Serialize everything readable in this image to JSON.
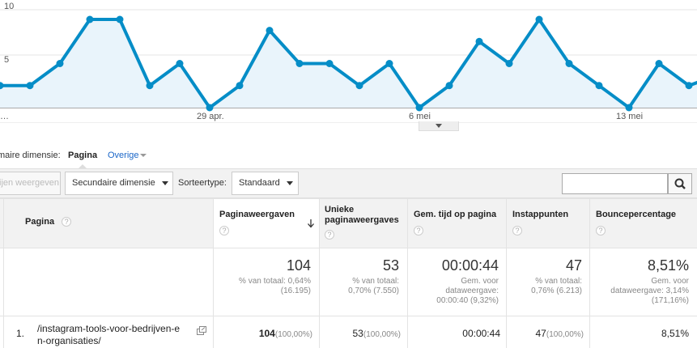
{
  "chart_data": {
    "type": "area",
    "ylim": [
      0,
      10
    ],
    "y_ticks": [
      "10",
      "5"
    ],
    "x_tick_labels": [
      "…",
      "29 apr.",
      "6 mei",
      "13 mei"
    ],
    "values": [
      2,
      2,
      4,
      8,
      8,
      2,
      4,
      0,
      2,
      7,
      4,
      4,
      2,
      4,
      0,
      2,
      6,
      4,
      8,
      4,
      2,
      0,
      4,
      2,
      3
    ],
    "line_color": "#058dc7",
    "fill_color": "#e9f4fb"
  },
  "dimension_bar": {
    "label": "maire dimensie:",
    "active": "Pagina",
    "other": "Overige"
  },
  "toolbar": {
    "plot_rows": "ijen weergeven",
    "secondary_dimension": "Secundaire dimensie",
    "sort_type_label": "Sorteertype:",
    "sort_type_value": "Standaard",
    "search_value": ""
  },
  "table": {
    "headers": {
      "page": "Pagina",
      "pageviews": "Paginaweergaven",
      "unique_line1": "Unieke",
      "unique_line2": "paginaweergaves",
      "avg_time": "Gem. tijd op pagina",
      "entrances": "Instappunten",
      "bounce": "Bouncepercentage",
      "help": "?"
    },
    "totals": {
      "pageviews": "104",
      "pageviews_sub1": "% van totaal: 0,64%",
      "pageviews_sub2": "(16.195)",
      "unique": "53",
      "unique_sub1": "% van totaal:",
      "unique_sub2": "0,70% (7.550)",
      "avg_time": "00:00:44",
      "avg_time_sub1": "Gem. voor",
      "avg_time_sub2": "dataweergave:",
      "avg_time_sub3": "00:00:40 (9,32%)",
      "entrances": "47",
      "entrances_sub1": "% van totaal:",
      "entrances_sub2": "0,76% (6.213)",
      "bounce": "8,51%",
      "bounce_sub1": "Gem. voor",
      "bounce_sub2": "dataweergave: 3,14%",
      "bounce_sub3": "(171,16%)"
    },
    "rows": [
      {
        "num": "1.",
        "page_line1": "/instagram-tools-voor-bedrijven-e",
        "page_line2": "n-organisaties/",
        "pageviews": "104",
        "pageviews_pct": "(100,00%)",
        "unique": "53",
        "unique_pct": "(100,00%)",
        "avg_time": "00:00:44",
        "entrances": "47",
        "entrances_pct": "(100,00%)",
        "bounce": "8,51%"
      }
    ]
  }
}
